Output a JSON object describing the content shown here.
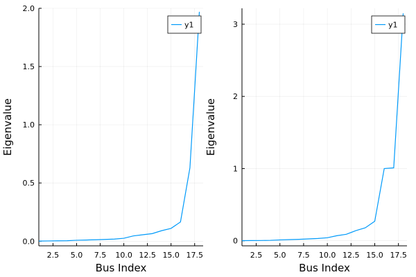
{
  "chart_data": [
    {
      "type": "line",
      "xlabel": "Bus Index",
      "ylabel": "Eigenvalue",
      "xlim": [
        1,
        18.4
      ],
      "ylim": [
        -0.04,
        2.0
      ],
      "xticks": [
        2.5,
        5.0,
        7.5,
        10.0,
        12.5,
        15.0,
        17.5
      ],
      "xtick_labels": [
        "2.5",
        "5.0",
        "7.5",
        "10.0",
        "12.5",
        "15.0",
        "17.5"
      ],
      "yticks": [
        0,
        0.5,
        1.0,
        1.5,
        2.0
      ],
      "ytick_labels": [
        "0.0",
        "0.5",
        "1.0",
        "1.5",
        "2.0"
      ],
      "grid": true,
      "legend": "top-right",
      "color": "#009AFA",
      "series": [
        {
          "name": "y1",
          "x": [
            1,
            2,
            3,
            4,
            5,
            6,
            7,
            8,
            9,
            10,
            11,
            12,
            13,
            14,
            15,
            16,
            17,
            18
          ],
          "y": [
            0.001,
            0.002,
            0.003,
            0.004,
            0.008,
            0.01,
            0.012,
            0.015,
            0.018,
            0.025,
            0.045,
            0.055,
            0.065,
            0.09,
            0.11,
            0.165,
            0.63,
            1.97
          ]
        }
      ]
    },
    {
      "type": "line",
      "xlabel": "Bus Index",
      "ylabel": "Eigenvalue",
      "xlim": [
        1,
        18.4
      ],
      "ylim": [
        -0.07,
        3.22
      ],
      "xticks": [
        2.5,
        5.0,
        7.5,
        10.0,
        12.5,
        15.0,
        17.5
      ],
      "xtick_labels": [
        "2.5",
        "5.0",
        "7.5",
        "10.0",
        "12.5",
        "15.0",
        "17.5"
      ],
      "yticks": [
        0,
        1,
        2,
        3
      ],
      "ytick_labels": [
        "0",
        "1",
        "2",
        "3"
      ],
      "grid": true,
      "legend": "top-right",
      "color": "#009AFA",
      "series": [
        {
          "name": "y1",
          "x": [
            1,
            2,
            3,
            4,
            5,
            6,
            7,
            8,
            9,
            10,
            11,
            12,
            13,
            14,
            15,
            16,
            17,
            18
          ],
          "y": [
            0.002,
            0.003,
            0.004,
            0.006,
            0.012,
            0.016,
            0.02,
            0.026,
            0.032,
            0.042,
            0.07,
            0.09,
            0.14,
            0.18,
            0.27,
            1.0,
            1.01,
            3.15
          ]
        }
      ]
    }
  ]
}
